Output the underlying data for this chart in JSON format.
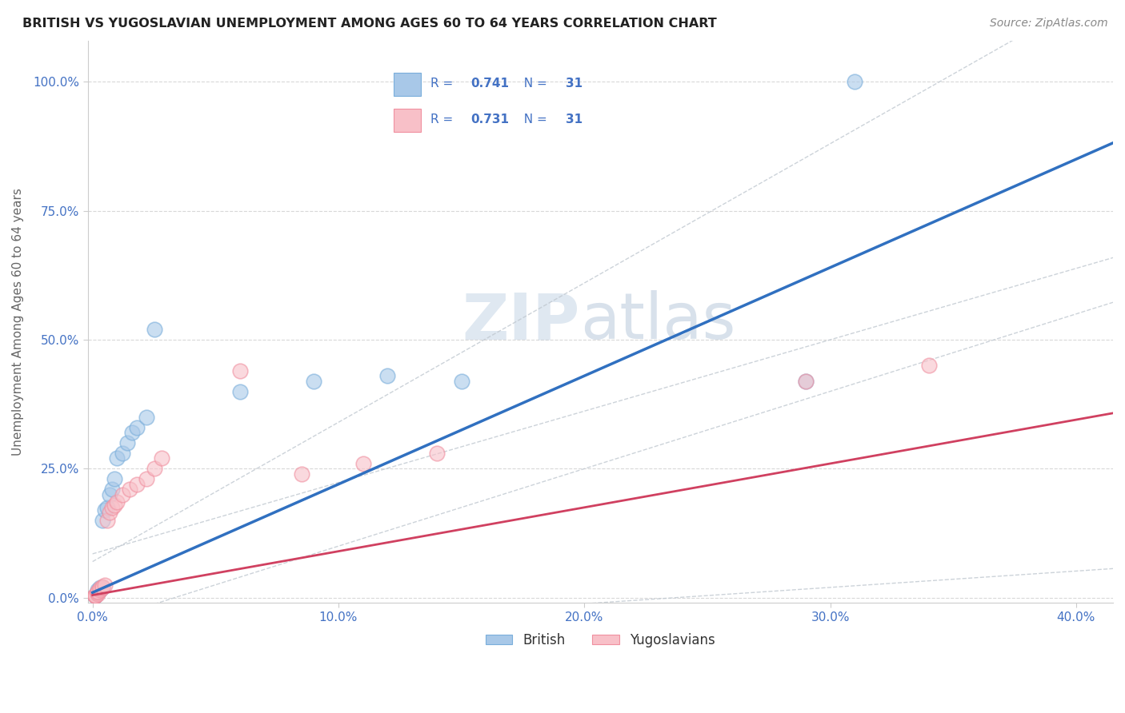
{
  "title": "BRITISH VS YUGOSLAVIAN UNEMPLOYMENT AMONG AGES 60 TO 64 YEARS CORRELATION CHART",
  "source": "Source: ZipAtlas.com",
  "ylabel": "Unemployment Among Ages 60 to 64 years",
  "xlabel_vals": [
    0.0,
    0.1,
    0.2,
    0.3,
    0.4
  ],
  "ylabel_vals": [
    0.0,
    0.25,
    0.5,
    0.75,
    1.0
  ],
  "ylabel_labels": [
    "0.0%",
    "25.0%",
    "50.0%",
    "75.0%",
    "100.0%"
  ],
  "xlim": [
    -0.002,
    0.415
  ],
  "ylim": [
    -0.01,
    1.08
  ],
  "british_R": 0.741,
  "british_N": 31,
  "yugoslavian_R": 0.731,
  "yugoslavian_N": 31,
  "british_marker_color": "#a8c8e8",
  "british_marker_edge": "#7aaedb",
  "yugoslavian_marker_color": "#f8c0c8",
  "yugoslavian_marker_edge": "#f090a0",
  "british_line_color": "#3070c0",
  "yugoslavian_line_color": "#d04060",
  "ci_line_color": "#c0c8d0",
  "watermark_color": "#d0dce8",
  "background_color": "#ffffff",
  "grid_color": "#d8d8d8",
  "tick_color": "#4472C4",
  "british_x": [
    0.001,
    0.001,
    0.001,
    0.001,
    0.001,
    0.001,
    0.002,
    0.002,
    0.002,
    0.003,
    0.003,
    0.004,
    0.004,
    0.005,
    0.006,
    0.007,
    0.008,
    0.009,
    0.01,
    0.012,
    0.014,
    0.016,
    0.018,
    0.022,
    0.025,
    0.06,
    0.09,
    0.12,
    0.15,
    0.29,
    0.31
  ],
  "british_y": [
    0.005,
    0.005,
    0.005,
    0.005,
    0.005,
    0.005,
    0.01,
    0.01,
    0.015,
    0.015,
    0.02,
    0.02,
    0.15,
    0.17,
    0.175,
    0.2,
    0.21,
    0.23,
    0.27,
    0.28,
    0.3,
    0.32,
    0.33,
    0.35,
    0.52,
    0.4,
    0.42,
    0.43,
    0.42,
    0.42,
    1.0
  ],
  "yugoslavian_x": [
    0.001,
    0.001,
    0.001,
    0.001,
    0.001,
    0.001,
    0.002,
    0.002,
    0.002,
    0.003,
    0.003,
    0.004,
    0.004,
    0.005,
    0.006,
    0.007,
    0.008,
    0.009,
    0.01,
    0.012,
    0.015,
    0.018,
    0.022,
    0.025,
    0.028,
    0.06,
    0.085,
    0.11,
    0.14,
    0.29,
    0.34
  ],
  "yugoslavian_y": [
    0.005,
    0.005,
    0.005,
    0.005,
    0.005,
    0.005,
    0.008,
    0.01,
    0.012,
    0.015,
    0.018,
    0.02,
    0.022,
    0.025,
    0.15,
    0.165,
    0.175,
    0.18,
    0.185,
    0.2,
    0.21,
    0.22,
    0.23,
    0.25,
    0.27,
    0.44,
    0.24,
    0.26,
    0.28,
    0.42,
    0.45
  ]
}
